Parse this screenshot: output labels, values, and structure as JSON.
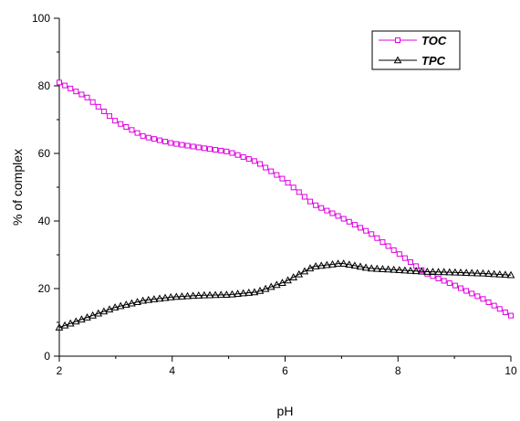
{
  "chart_data": {
    "type": "line",
    "xlabel": "pH",
    "ylabel": "% of complex",
    "xlim": [
      2,
      10
    ],
    "ylim": [
      0,
      100
    ],
    "xticks": [
      "2",
      "4",
      "6",
      "8",
      "10"
    ],
    "yticks": [
      "0",
      "20",
      "40",
      "60",
      "80",
      "100"
    ],
    "grid": false,
    "legend_position": "top-right",
    "series": [
      {
        "name": "TOC",
        "color": "#e000e0",
        "marker": "square",
        "x": [
          2,
          2.5,
          3,
          3.5,
          4,
          4.5,
          5,
          5.5,
          6,
          6.5,
          7,
          7.5,
          8,
          8.5,
          9,
          9.5,
          10
        ],
        "y": [
          81,
          76.5,
          69.5,
          65,
          63,
          61.7,
          60.5,
          57.5,
          52,
          45,
          41,
          36.5,
          30.5,
          24.5,
          21,
          17,
          12
        ]
      },
      {
        "name": "TPC",
        "color": "#000000",
        "marker": "triangle",
        "x": [
          2,
          2.5,
          3,
          3.5,
          4,
          4.5,
          5,
          5.5,
          6,
          6.5,
          7,
          7.5,
          8,
          8.5,
          9,
          9.5,
          10
        ],
        "y": [
          8.5,
          11.5,
          14.5,
          16.5,
          17.5,
          18,
          18.2,
          19,
          22,
          26.5,
          27.5,
          26,
          25.5,
          25,
          24.8,
          24.5,
          24
        ]
      }
    ]
  }
}
